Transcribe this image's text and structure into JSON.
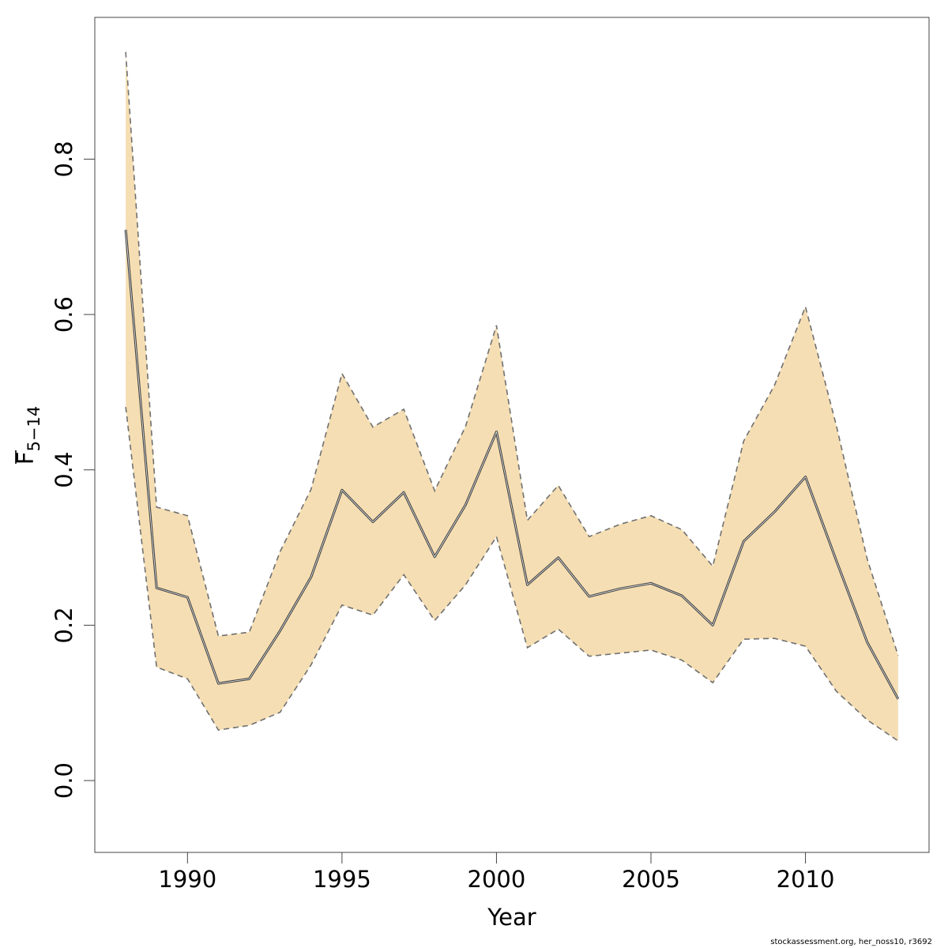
{
  "chart_data": {
    "type": "area",
    "xlabel": "Year",
    "ylabel_main": "F",
    "ylabel_sub": "5−14",
    "x_ticks": [
      "1990",
      "1995",
      "2000",
      "2005",
      "2010"
    ],
    "y_ticks": [
      "0.0",
      "0.2",
      "0.4",
      "0.6",
      "0.8"
    ],
    "xlim": [
      1987.0,
      2014.0
    ],
    "ylim": [
      -0.0925,
      0.9825
    ],
    "grid": false,
    "colors": {
      "band": "#f5deb3",
      "line": "#404040",
      "dashed": "#707070"
    },
    "x": [
      1988,
      1989,
      1990,
      1991,
      1992,
      1993,
      1994,
      1995,
      1996,
      1997,
      1998,
      1999,
      2000,
      2001,
      2002,
      2003,
      2004,
      2005,
      2006,
      2007,
      2008,
      2009,
      2010,
      2011,
      2012,
      2013
    ],
    "series": [
      {
        "role": "estimate",
        "values": [
          0.709,
          0.248,
          0.236,
          0.125,
          0.131,
          0.193,
          0.262,
          0.374,
          0.333,
          0.371,
          0.288,
          0.355,
          0.449,
          0.252,
          0.287,
          0.237,
          0.247,
          0.254,
          0.238,
          0.2,
          0.308,
          0.346,
          0.391,
          0.283,
          0.178,
          0.105
        ]
      },
      {
        "role": "upper",
        "values": [
          0.938,
          0.352,
          0.341,
          0.186,
          0.191,
          0.295,
          0.375,
          0.524,
          0.455,
          0.478,
          0.373,
          0.456,
          0.586,
          0.335,
          0.38,
          0.314,
          0.33,
          0.341,
          0.323,
          0.276,
          0.437,
          0.509,
          0.61,
          0.457,
          0.285,
          0.161
        ]
      },
      {
        "role": "lower",
        "values": [
          0.481,
          0.146,
          0.131,
          0.065,
          0.071,
          0.088,
          0.149,
          0.226,
          0.213,
          0.265,
          0.206,
          0.252,
          0.314,
          0.171,
          0.195,
          0.16,
          0.164,
          0.168,
          0.155,
          0.126,
          0.182,
          0.183,
          0.173,
          0.115,
          0.078,
          0.051
        ]
      }
    ]
  },
  "footer_text": "stockassessment.org, her_noss10, r3692"
}
